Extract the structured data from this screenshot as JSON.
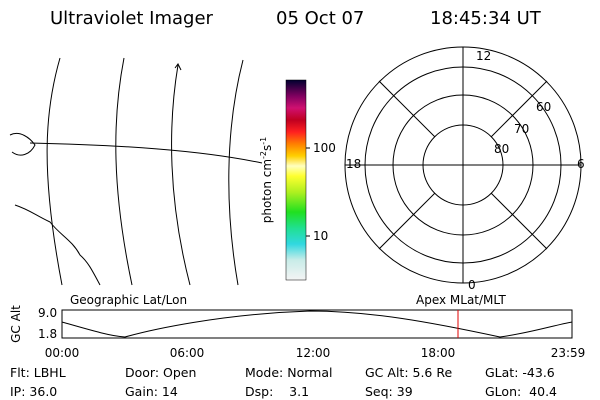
{
  "header": {
    "title": "Ultraviolet Imager",
    "date": "05 Oct 07",
    "time": "18:45:34 UT"
  },
  "map": {
    "label": "Geographic Lat/Lon"
  },
  "colorbar": {
    "label": {
      "text": "photon cm",
      "exp1": "-2",
      "unit": "s",
      "exp2": "-1"
    },
    "ticks": [
      "100",
      "10"
    ]
  },
  "polar": {
    "label": "Apex MLat/MLT",
    "hours": {
      "top": "12",
      "left": "18",
      "right": "6",
      "bottom": "0"
    },
    "latitudes": [
      "80",
      "70",
      "60"
    ]
  },
  "altitude": {
    "label": "GC Alt",
    "yticks": [
      "9.0",
      "1.8"
    ],
    "xticks": [
      "00:00",
      "06:00",
      "12:00",
      "18:00",
      "23:59"
    ]
  },
  "footer": {
    "rows": [
      [
        "Flt: LBHL",
        "Door: Open",
        "Mode: Normal",
        "GC Alt: 5.6 Re",
        "GLat: -43.6"
      ],
      [
        "IP: 36.0",
        "Gain: 14",
        "Dsp:    3.1",
        "Seq: 39",
        "GLon:  40.4"
      ]
    ]
  }
}
